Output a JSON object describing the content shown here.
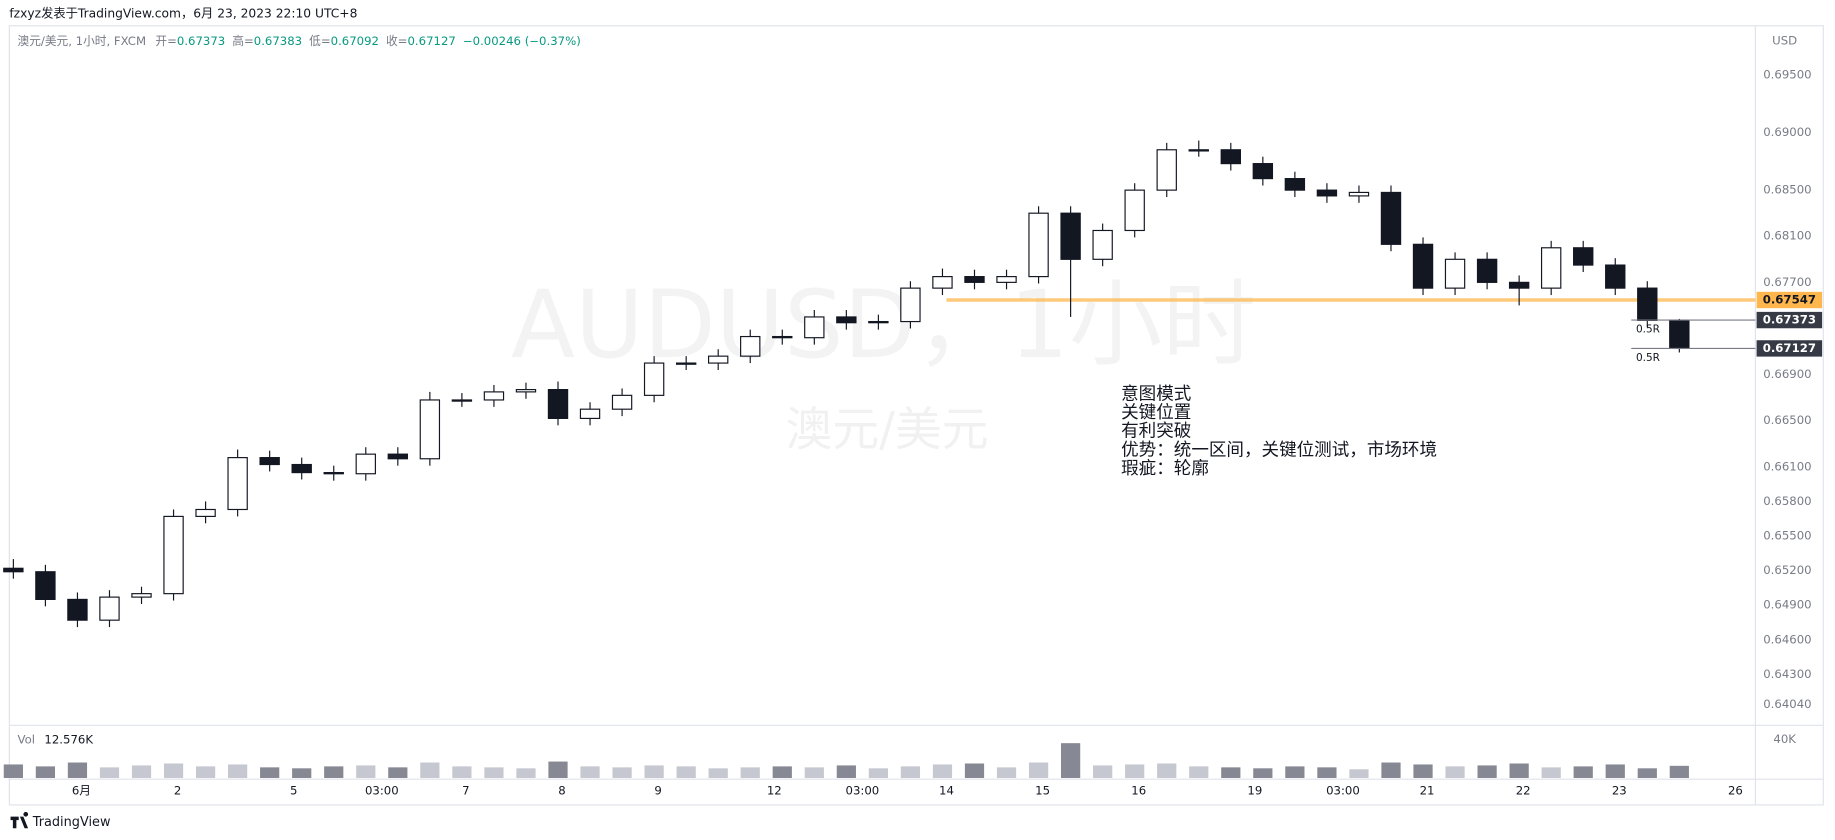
{
  "chart_data": {
    "type": "candlestick",
    "header": "fzxyz发表于TradingView.com，6月 23, 2023 22:10 UTC+8",
    "symbol": "澳元/美元, 1小时, FXCM",
    "ohlc_labels": [
      "开=",
      "高=",
      "低=",
      "收="
    ],
    "change": "−0.00246 (−0.37%)",
    "currency": "USD",
    "watermark": "AUDUSD，1小时",
    "watermark_sub": "澳元/美元",
    "annotation": [
      "意图模式",
      "关键位置",
      "有利突破",
      "优势：统一区间，关键位测试，市场环境",
      "瑕疵：轮廓"
    ],
    "brand": "TradingView",
    "up_color": "#ffffff",
    "down_color": "#131722",
    "wick_color": "#131722",
    "x": [
      1,
      9,
      17,
      25,
      33,
      41,
      49,
      57,
      65,
      73,
      81,
      89,
      97,
      105,
      113,
      121,
      129,
      137,
      145,
      153,
      161,
      169,
      177,
      185,
      193,
      201,
      209,
      217,
      225,
      233,
      241,
      249,
      257,
      265,
      273,
      281,
      289,
      297,
      305,
      313,
      321,
      329,
      337,
      345,
      353,
      361,
      369,
      377,
      385,
      393,
      401,
      409,
      417
    ],
    "open": [
      0.6522,
      0.6519,
      0.6495,
      0.6477,
      0.6497,
      0.65,
      0.6567,
      0.6573,
      0.6618,
      0.6612,
      0.6605,
      0.6604,
      0.6621,
      0.6617,
      0.6668,
      0.6668,
      0.6675,
      0.6677,
      0.6652,
      0.666,
      0.6672,
      0.67,
      0.67,
      0.6706,
      0.6723,
      0.6722,
      0.674,
      0.6735,
      0.6736,
      0.6765,
      0.6775,
      0.677,
      0.6775,
      0.683,
      0.679,
      0.6815,
      0.685,
      0.6885,
      0.6885,
      0.6873,
      0.686,
      0.685,
      0.6845,
      0.6848,
      0.6803,
      0.6765,
      0.679,
      0.677,
      0.6765,
      0.68,
      0.6785,
      0.6765,
      0.67373
    ],
    "high": [
      0.653,
      0.6525,
      0.6501,
      0.6503,
      0.6506,
      0.6573,
      0.658,
      0.6625,
      0.6624,
      0.6618,
      0.6611,
      0.6627,
      0.6627,
      0.6675,
      0.6674,
      0.6681,
      0.6683,
      0.6684,
      0.6666,
      0.6678,
      0.6706,
      0.6706,
      0.6712,
      0.6729,
      0.6729,
      0.6746,
      0.6746,
      0.6742,
      0.6771,
      0.6782,
      0.6781,
      0.6781,
      0.6836,
      0.6836,
      0.6821,
      0.6856,
      0.6891,
      0.6893,
      0.6891,
      0.6879,
      0.6866,
      0.6856,
      0.6854,
      0.6854,
      0.6809,
      0.6796,
      0.6796,
      0.6776,
      0.6806,
      0.6806,
      0.6791,
      0.6771,
      0.67383
    ],
    "low": [
      0.6513,
      0.6489,
      0.6471,
      0.6471,
      0.6491,
      0.6494,
      0.6561,
      0.6567,
      0.6606,
      0.6599,
      0.6598,
      0.6598,
      0.6611,
      0.6611,
      0.6662,
      0.6662,
      0.6669,
      0.6646,
      0.6646,
      0.6654,
      0.6666,
      0.6694,
      0.6694,
      0.67,
      0.6716,
      0.6716,
      0.6729,
      0.6729,
      0.673,
      0.6759,
      0.6764,
      0.6764,
      0.6769,
      0.674,
      0.6784,
      0.6809,
      0.6844,
      0.6879,
      0.6867,
      0.6854,
      0.6844,
      0.6839,
      0.6839,
      0.6797,
      0.6759,
      0.6759,
      0.6764,
      0.675,
      0.6759,
      0.6779,
      0.6759,
      0.6731,
      0.67092
    ],
    "close": [
      0.6519,
      0.6495,
      0.6477,
      0.6497,
      0.65,
      0.6567,
      0.6573,
      0.6618,
      0.6612,
      0.6605,
      0.6604,
      0.6621,
      0.6617,
      0.6668,
      0.6668,
      0.6675,
      0.6677,
      0.6652,
      0.666,
      0.6672,
      0.67,
      0.67,
      0.6706,
      0.6723,
      0.6722,
      0.674,
      0.6735,
      0.6736,
      0.6765,
      0.6775,
      0.677,
      0.6775,
      0.683,
      0.679,
      0.6815,
      0.685,
      0.6885,
      0.6885,
      0.6873,
      0.686,
      0.685,
      0.6845,
      0.6848,
      0.6803,
      0.6765,
      0.679,
      0.677,
      0.6765,
      0.68,
      0.6785,
      0.6765,
      0.6737,
      0.67127
    ],
    "xlim": [
      0,
      436
    ],
    "xticks": [
      {
        "value": 18,
        "label": "6月"
      },
      {
        "value": 42,
        "label": "2"
      },
      {
        "value": 71,
        "label": "5"
      },
      {
        "value": 93,
        "label": "03:00"
      },
      {
        "value": 114,
        "label": "7"
      },
      {
        "value": 138,
        "label": "8"
      },
      {
        "value": 162,
        "label": "9"
      },
      {
        "value": 191,
        "label": "12"
      },
      {
        "value": 213,
        "label": "03:00"
      },
      {
        "value": 234,
        "label": "14"
      },
      {
        "value": 258,
        "label": "15"
      },
      {
        "value": 282,
        "label": "16"
      },
      {
        "value": 311,
        "label": "19"
      },
      {
        "value": 333,
        "label": "03:00"
      },
      {
        "value": 354,
        "label": "21"
      },
      {
        "value": 378,
        "label": "22"
      },
      {
        "value": 402,
        "label": "23"
      },
      {
        "value": 431,
        "label": "26"
      }
    ],
    "ylim": [
      0.63878,
      0.69865
    ],
    "yticks": [
      {
        "value": 0.695,
        "label": "0.69500"
      },
      {
        "value": 0.69,
        "label": "0.69000"
      },
      {
        "value": 0.685,
        "label": "0.68500"
      },
      {
        "value": 0.681,
        "label": "0.68100"
      },
      {
        "value": 0.677,
        "label": "0.67700"
      },
      {
        "value": 0.669,
        "label": "0.66900"
      },
      {
        "value": 0.665,
        "label": "0.66500"
      },
      {
        "value": 0.661,
        "label": "0.66100"
      },
      {
        "value": 0.658,
        "label": "0.65800"
      },
      {
        "value": 0.655,
        "label": "0.65500"
      },
      {
        "value": 0.652,
        "label": "0.65200"
      },
      {
        "value": 0.649,
        "label": "0.64900"
      },
      {
        "value": 0.646,
        "label": "0.64600"
      },
      {
        "value": 0.643,
        "label": "0.64300"
      },
      {
        "value": 0.6404,
        "label": "0.64040"
      }
    ],
    "grid": false,
    "level": {
      "value": 0.67547,
      "color": "#ffb74d",
      "x_start": 234
    },
    "risk": {
      "labels": [
        "0.5R",
        "0.5R"
      ],
      "x_start": 405,
      "color": "#787b86"
    },
    "volume": {
      "name": "Vol",
      "last_label": "12.576K",
      "up_color": "#c5c8d0",
      "down_color": "#868993",
      "values": [
        14000,
        12000,
        16000,
        11000,
        13000,
        15000,
        12000,
        14000,
        11000,
        10000,
        12000,
        13000,
        11000,
        16000,
        12000,
        11000,
        10000,
        17000,
        12000,
        11000,
        13000,
        12000,
        10000,
        11000,
        12000,
        11000,
        13000,
        10000,
        12000,
        14000,
        15000,
        11000,
        16000,
        36000,
        13000,
        14000,
        15000,
        12000,
        11000,
        10000,
        12000,
        11000,
        9000,
        16000,
        14000,
        12000,
        13000,
        15000,
        11000,
        12000,
        14000,
        10000,
        12576
      ],
      "ylim": [
        0,
        52000
      ],
      "yticks": [
        {
          "value": 40000,
          "label": "40K"
        }
      ]
    }
  }
}
